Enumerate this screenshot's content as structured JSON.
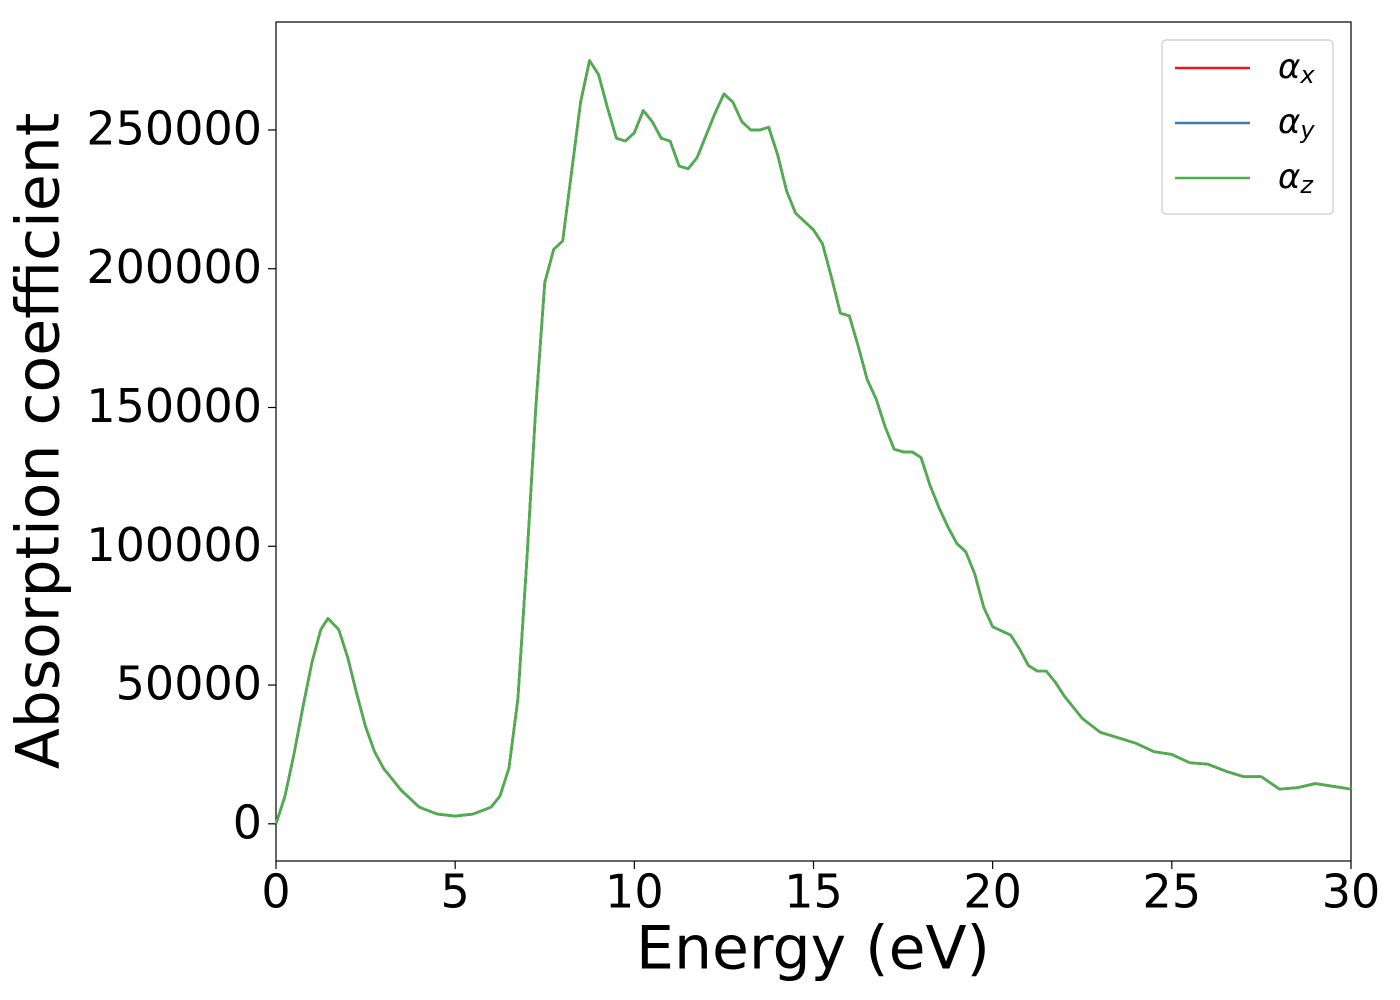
{
  "chart_data": {
    "type": "line",
    "xlabel": "Energy (eV)",
    "ylabel": "Absorption coefficient",
    "x": [
      0,
      0.25,
      0.5,
      0.75,
      1.0,
      1.25,
      1.45,
      1.75,
      2.0,
      2.25,
      2.5,
      2.75,
      3.0,
      3.5,
      4.0,
      4.5,
      5.0,
      5.5,
      6.0,
      6.25,
      6.5,
      6.75,
      7.0,
      7.25,
      7.5,
      7.75,
      8.0,
      8.25,
      8.5,
      8.75,
      9.0,
      9.25,
      9.5,
      9.75,
      10.0,
      10.25,
      10.5,
      10.75,
      11.0,
      11.25,
      11.5,
      11.75,
      12.0,
      12.25,
      12.5,
      12.75,
      13.0,
      13.25,
      13.5,
      13.75,
      14.0,
      14.25,
      14.5,
      14.75,
      15.0,
      15.25,
      15.5,
      15.75,
      16.0,
      16.25,
      16.5,
      16.75,
      17.0,
      17.25,
      17.5,
      17.75,
      18.0,
      18.25,
      18.5,
      18.75,
      19.0,
      19.25,
      19.5,
      19.75,
      20.0,
      20.5,
      20.75,
      21.0,
      21.25,
      21.5,
      21.75,
      22.0,
      22.5,
      23.0,
      23.5,
      24.0,
      24.5,
      25.0,
      25.5,
      26.0,
      26.5,
      27.0,
      27.5,
      28.0,
      28.5,
      29.0,
      29.5,
      30.0
    ],
    "series": [
      {
        "name": "αx",
        "color": "#e41a1c",
        "values": [
          0,
          10000,
          25000,
          42000,
          58000,
          70000,
          74000,
          70000,
          60000,
          47000,
          35000,
          26000,
          20000,
          12000,
          6000,
          3500,
          2800,
          3500,
          6000,
          10000,
          20000,
          45000,
          95000,
          150000,
          195000,
          207000,
          210000,
          235000,
          260000,
          275000,
          270000,
          258000,
          247000,
          246000,
          249000,
          257000,
          253000,
          247000,
          246000,
          237000,
          236000,
          240000,
          248000,
          256000,
          263000,
          260000,
          253000,
          250000,
          250000,
          251000,
          241000,
          228000,
          220000,
          217000,
          214000,
          209000,
          197000,
          184000,
          183000,
          172000,
          160000,
          153000,
          143000,
          135000,
          134000,
          134000,
          132000,
          122000,
          114000,
          107000,
          101000,
          98000,
          90000,
          78000,
          71000,
          68000,
          63000,
          57000,
          55000,
          55000,
          51000,
          46000,
          38000,
          33000,
          31000,
          29000,
          26000,
          25000,
          22000,
          21500,
          19000,
          17000,
          17000,
          12500,
          13000,
          14500,
          13500,
          12500
        ]
      },
      {
        "name": "αy",
        "color": "#377eb8",
        "values": [
          0,
          10000,
          25000,
          42000,
          58000,
          70000,
          74000,
          70000,
          60000,
          47000,
          35000,
          26000,
          20000,
          12000,
          6000,
          3500,
          2800,
          3500,
          6000,
          10000,
          20000,
          45000,
          95000,
          150000,
          195000,
          207000,
          210000,
          235000,
          260000,
          275000,
          270000,
          258000,
          247000,
          246000,
          249000,
          257000,
          253000,
          247000,
          246000,
          237000,
          236000,
          240000,
          248000,
          256000,
          263000,
          260000,
          253000,
          250000,
          250000,
          251000,
          241000,
          228000,
          220000,
          217000,
          214000,
          209000,
          197000,
          184000,
          183000,
          172000,
          160000,
          153000,
          143000,
          135000,
          134000,
          134000,
          132000,
          122000,
          114000,
          107000,
          101000,
          98000,
          90000,
          78000,
          71000,
          68000,
          63000,
          57000,
          55000,
          55000,
          51000,
          46000,
          38000,
          33000,
          31000,
          29000,
          26000,
          25000,
          22000,
          21500,
          19000,
          17000,
          17000,
          12500,
          13000,
          14500,
          13500,
          12500
        ]
      },
      {
        "name": "αz",
        "color": "#4daf4a",
        "values": [
          0,
          10000,
          25000,
          42000,
          58000,
          70000,
          74000,
          70000,
          60000,
          47000,
          35000,
          26000,
          20000,
          12000,
          6000,
          3500,
          2800,
          3500,
          6000,
          10000,
          20000,
          45000,
          95000,
          150000,
          195000,
          207000,
          210000,
          235000,
          260000,
          275000,
          270000,
          258000,
          247000,
          246000,
          249000,
          257000,
          253000,
          247000,
          246000,
          237000,
          236000,
          240000,
          248000,
          256000,
          263000,
          260000,
          253000,
          250000,
          250000,
          251000,
          241000,
          228000,
          220000,
          217000,
          214000,
          209000,
          197000,
          184000,
          183000,
          172000,
          160000,
          153000,
          143000,
          135000,
          134000,
          134000,
          132000,
          122000,
          114000,
          107000,
          101000,
          98000,
          90000,
          78000,
          71000,
          68000,
          63000,
          57000,
          55000,
          55000,
          51000,
          46000,
          38000,
          33000,
          31000,
          29000,
          26000,
          25000,
          22000,
          21500,
          19000,
          17000,
          17000,
          12500,
          13000,
          14500,
          13500,
          12500
        ]
      }
    ],
    "xlim": [
      0,
      30
    ],
    "xticks": [
      0,
      5,
      10,
      15,
      20,
      25,
      30
    ],
    "ylim": [
      -13400,
      288900
    ],
    "yticks": [
      0,
      50000,
      100000,
      150000,
      200000,
      250000
    ],
    "grid": false,
    "legend": "upper right"
  }
}
